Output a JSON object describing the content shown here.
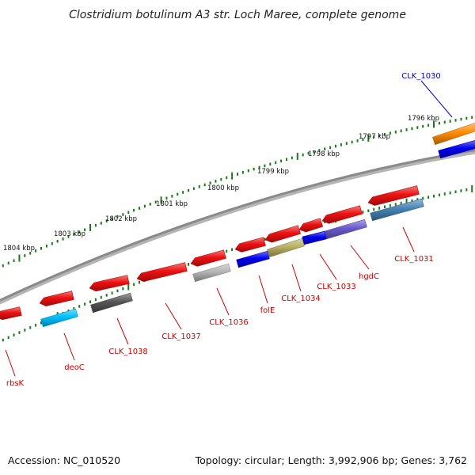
{
  "title": "Clostridium botulinum A3 str. Loch Maree, complete genome",
  "footer": {
    "accession": "Accession: NC_010520",
    "topology": "Topology: circular; Length: 3,992,906 bp; Genes: 3,762"
  },
  "colors": {
    "backbone": "#8a8a8a",
    "tick": "#1a7a1a",
    "label_forward": "#0000cc",
    "label_reverse": "#cc0000"
  },
  "kbp_labels": [
    "1796 kbp",
    "1797 kbp",
    "1798 kbp",
    "1799 kbp",
    "1800 kbp",
    "1801 kbp",
    "1802 kbp",
    "1803 kbp",
    "1804 kbp"
  ],
  "genes": [
    {
      "label": "CLK_1030",
      "strand": "+",
      "color": "#ff8c00"
    },
    {
      "label": "CLK_1031",
      "strand": "-",
      "color": "#4682b4"
    },
    {
      "label": "hgdC",
      "strand": "-",
      "color": "#6a5acd"
    },
    {
      "label": "CLK_1033",
      "strand": "-",
      "color": "#0000ee"
    },
    {
      "label": "CLK_1034",
      "strand": "-",
      "color": "#b8b062"
    },
    {
      "label": "folE",
      "strand": "-",
      "color": "#0000ee"
    },
    {
      "label": "CLK_1036",
      "strand": "-",
      "color": "#b5b5b5"
    },
    {
      "label": "CLK_1037",
      "strand": "-",
      "color": "#ee1111"
    },
    {
      "label": "CLK_1038",
      "strand": "-",
      "color": "#555555"
    },
    {
      "label": "deoC",
      "strand": "-",
      "color": "#00bfff"
    },
    {
      "label": "rbsK",
      "strand": "-",
      "color": "#ee1111"
    }
  ],
  "unlabeled_feature_color": "#ee1111"
}
